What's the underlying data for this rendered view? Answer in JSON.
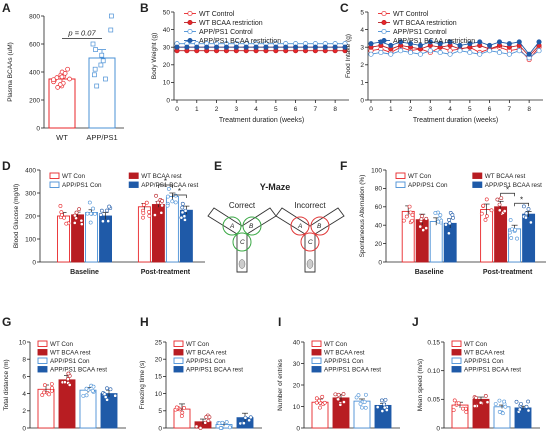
{
  "chart_data": [
    {
      "panel": "A",
      "type": "bar",
      "categories": [
        "WT",
        "APP/PS1"
      ],
      "values": [
        350,
        500
      ],
      "errors": [
        20,
        60
      ],
      "ylabel": "Plasma BCAAs (uM)",
      "yticks": [
        0,
        200,
        400,
        600,
        800
      ],
      "ylim": [
        0,
        800
      ],
      "annotation": "p = 0.07",
      "points": [
        [
          300,
          320,
          340,
          360,
          380,
          400,
          330,
          350,
          370,
          310,
          290,
          420,
          390,
          345,
          365
        ],
        [
          300,
          350,
          420,
          480,
          520,
          560,
          600,
          700,
          800,
          380,
          450
        ]
      ]
    },
    {
      "panel": "B",
      "type": "line",
      "x": [
        0,
        0.5,
        1,
        1.5,
        2,
        2.5,
        3,
        3.5,
        4,
        4.5,
        5,
        5.5,
        6,
        6.5,
        7,
        7.5,
        8,
        8.5
      ],
      "xlabel": "Treatment duration (weeks)",
      "ylabel": "Body Weight (g)",
      "xticks": [
        0,
        1,
        2,
        3,
        4,
        5,
        6,
        7,
        8
      ],
      "yticks": [
        0,
        10,
        20,
        30,
        40,
        50
      ],
      "ylim": [
        0,
        50
      ],
      "series": [
        {
          "name": "WT Control",
          "values": [
            30,
            30,
            30,
            30,
            30,
            30,
            30,
            30,
            30,
            30,
            30,
            30,
            30,
            30,
            30,
            30,
            30,
            30
          ]
        },
        {
          "name": "WT BCAA restriction",
          "values": [
            28,
            28,
            28,
            28,
            28,
            28,
            28,
            28,
            28,
            28,
            28,
            28,
            28,
            28,
            28,
            28,
            28,
            28
          ]
        },
        {
          "name": "APP/PS1 Control",
          "values": [
            32,
            32,
            32,
            32,
            32,
            32,
            32,
            32,
            32,
            32,
            32,
            32,
            32,
            32,
            32,
            32,
            32,
            32
          ]
        },
        {
          "name": "APP/PS1 BCAA restriction",
          "values": [
            30,
            30,
            30,
            30,
            30,
            30,
            30,
            30,
            30,
            30,
            30,
            30,
            30,
            30,
            30,
            30,
            30,
            30
          ]
        }
      ]
    },
    {
      "panel": "C",
      "type": "line",
      "x": [
        0,
        0.5,
        1,
        1.5,
        2,
        2.5,
        3,
        3.5,
        4,
        4.5,
        5,
        5.5,
        6,
        6.5,
        7,
        7.5,
        8,
        8.5
      ],
      "xlabel": "Treatment duration (weeks)",
      "ylabel": "Food Intake (g)",
      "xticks": [
        0,
        1,
        2,
        3,
        4,
        5,
        6,
        7,
        8
      ],
      "yticks": [
        0,
        1,
        2,
        3,
        4,
        5
      ],
      "ylim": [
        0,
        5
      ],
      "series": [
        {
          "name": "WT Control",
          "values": [
            2.8,
            2.9,
            2.7,
            3.0,
            2.8,
            2.9,
            2.7,
            3.0,
            2.8,
            2.9,
            3.0,
            2.7,
            2.9,
            3.0,
            2.8,
            2.9,
            2.3,
            3.0
          ]
        },
        {
          "name": "WT BCAA restriction",
          "values": [
            3.0,
            3.1,
            2.9,
            3.1,
            3.0,
            2.9,
            3.1,
            3.0,
            3.1,
            2.9,
            3.0,
            3.1,
            2.9,
            3.1,
            3.0,
            3.1,
            2.5,
            3.1
          ]
        },
        {
          "name": "APP/PS1 Control",
          "values": [
            2.6,
            2.7,
            2.6,
            2.8,
            2.7,
            2.6,
            2.8,
            2.7,
            2.6,
            2.8,
            2.7,
            2.6,
            2.8,
            2.7,
            2.6,
            2.8,
            2.4,
            2.8
          ]
        },
        {
          "name": "APP/PS1 BCAA restriction",
          "values": [
            3.2,
            3.3,
            3.1,
            3.3,
            3.2,
            3.1,
            3.3,
            3.2,
            3.3,
            3.1,
            3.2,
            3.3,
            3.1,
            3.3,
            3.2,
            3.3,
            2.6,
            3.3
          ]
        }
      ]
    },
    {
      "panel": "D",
      "type": "bar",
      "categories": [
        "Baseline",
        "Post-treatment"
      ],
      "ylabel": "Blood Glucose (mg/dl)",
      "yticks": [
        0,
        100,
        200,
        300,
        400
      ],
      "ylim": [
        0,
        400
      ],
      "series": [
        {
          "name": "WT Con",
          "values": [
            200,
            240
          ],
          "errors": [
            15,
            15
          ]
        },
        {
          "name": "WT BCAA rest",
          "values": [
            205,
            250
          ],
          "errors": [
            12,
            12
          ]
        },
        {
          "name": "APP/PS1 Con",
          "values": [
            215,
            285
          ],
          "errors": [
            12,
            15
          ]
        },
        {
          "name": "APP/PS1 BCAA rest",
          "values": [
            200,
            225
          ],
          "errors": [
            15,
            18
          ]
        }
      ],
      "annotation": "*"
    },
    {
      "panel": "E",
      "type": "diagram",
      "title": "Y-Maze",
      "labels": [
        "Correct",
        "Incorrect"
      ],
      "arm_labels": [
        "A",
        "B",
        "C"
      ]
    },
    {
      "panel": "F",
      "type": "bar",
      "categories": [
        "Baseline",
        "Post-treatment"
      ],
      "ylabel": "Spontaneous Alternation (%)",
      "yticks": [
        0,
        20,
        40,
        60,
        80,
        100
      ],
      "ylim": [
        0,
        100
      ],
      "series": [
        {
          "name": "WT Con",
          "values": [
            55,
            57
          ],
          "errors": [
            6,
            6
          ]
        },
        {
          "name": "WT BCAA rest",
          "values": [
            46,
            60
          ],
          "errors": [
            6,
            6
          ]
        },
        {
          "name": "APP/PS1 Con",
          "values": [
            44,
            36
          ],
          "errors": [
            4,
            4
          ]
        },
        {
          "name": "APP/PS1 BCAA rest",
          "values": [
            42,
            52
          ],
          "errors": [
            5,
            3
          ]
        }
      ],
      "annotation": "*"
    },
    {
      "panel": "G",
      "type": "bar",
      "categories": [
        "WT Con",
        "WT BCAA rest",
        "APP/PS1 Con",
        "APP/PS1 BCAA rest"
      ],
      "values": [
        4.5,
        5.6,
        4.4,
        4.0
      ],
      "errors": [
        0.5,
        0.5,
        0.3,
        0.4
      ],
      "ylabel": "Total distance (m)",
      "yticks": [
        0,
        2,
        4,
        6,
        8,
        10
      ],
      "ylim": [
        0,
        10
      ]
    },
    {
      "panel": "H",
      "type": "bar",
      "categories": [
        "WT Con",
        "WT BCAA rest",
        "APP/PS1 Con",
        "APP/PS1 BCAA rest"
      ],
      "values": [
        5.5,
        1.8,
        1.0,
        3.0
      ],
      "errors": [
        1.5,
        0.8,
        0.5,
        1.3
      ],
      "ylabel": "Freezing time (s)",
      "yticks": [
        0,
        5,
        10,
        15,
        20,
        25
      ],
      "ylim": [
        0,
        25
      ]
    },
    {
      "panel": "I",
      "type": "bar",
      "categories": [
        "WT Con",
        "WT BCAA rest",
        "APP/PS1 Con",
        "APP/PS1 BCAA rest"
      ],
      "values": [
        12,
        14,
        12.5,
        10.5
      ],
      "errors": [
        1.5,
        1.5,
        1,
        1
      ],
      "ylabel": "Number of entries",
      "yticks": [
        0,
        10,
        20,
        30,
        40
      ],
      "ylim": [
        0,
        40
      ]
    },
    {
      "panel": "J",
      "type": "bar",
      "categories": [
        "WT Con",
        "WT BCAA rest",
        "APP/PS1 Con",
        "APP/PS1 BCAA rest"
      ],
      "values": [
        0.04,
        0.05,
        0.037,
        0.035
      ],
      "errors": [
        0.005,
        0.004,
        0.003,
        0.003
      ],
      "ylabel": "Mean speed (m/s)",
      "yticks": [
        0,
        0.05,
        0.1,
        0.15
      ],
      "ylim": [
        0,
        0.15
      ]
    }
  ],
  "colors": {
    "wt_con": "#e8262a",
    "wt_bcaa": "#b81d22",
    "app_con": "#4a90d6",
    "app_bcaa": "#1f5aa8",
    "axis": "#222222"
  }
}
